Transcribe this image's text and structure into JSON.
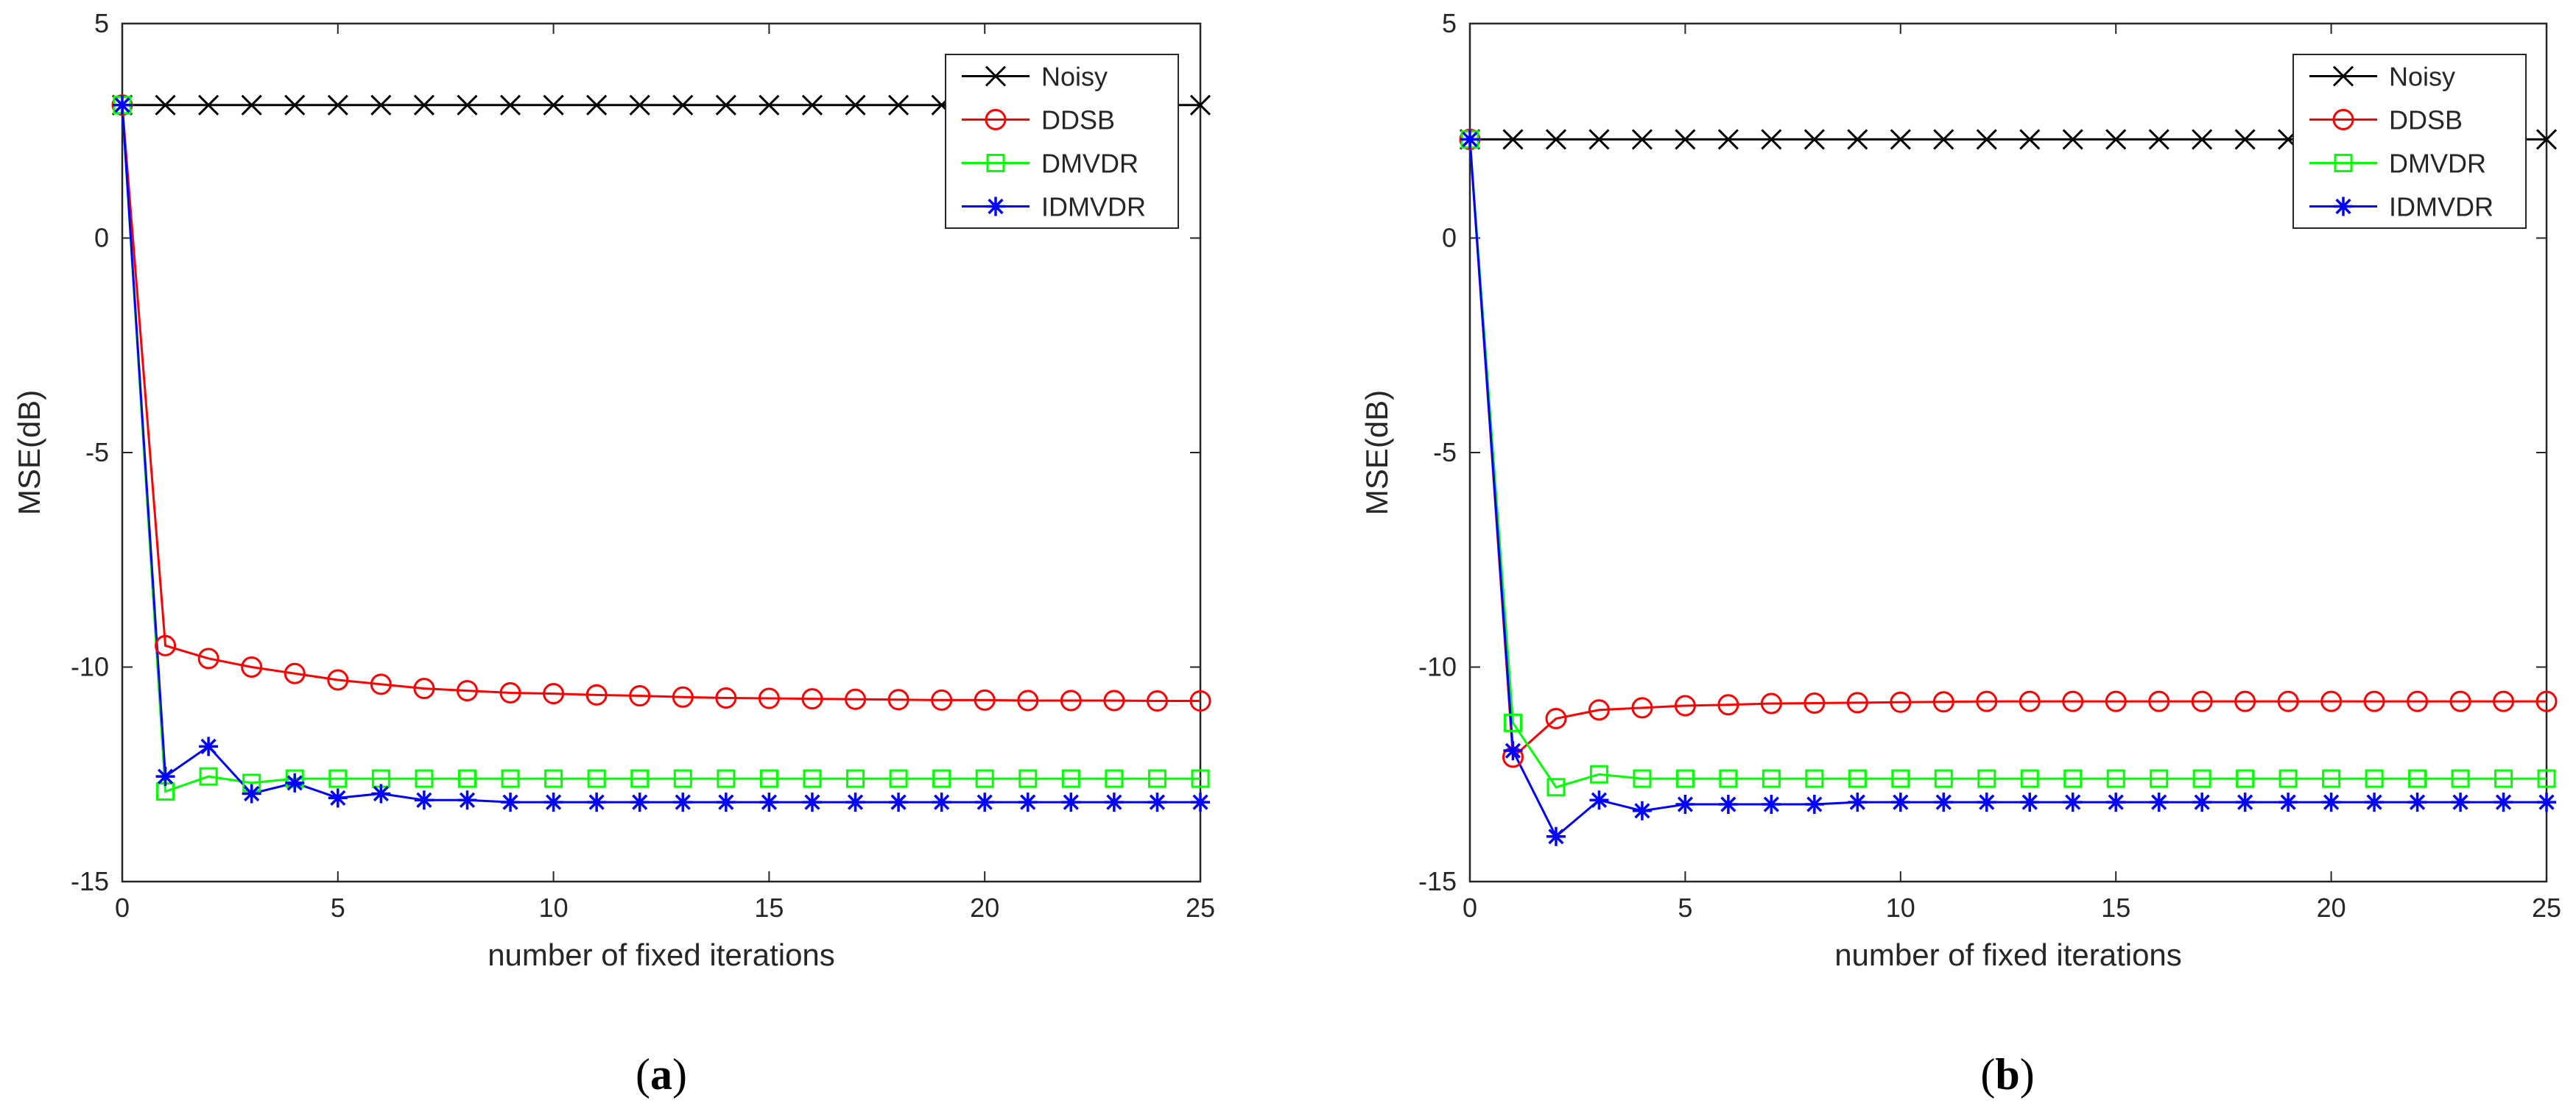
{
  "chart_data": [
    {
      "panel_id": "a",
      "type": "line",
      "caption": "a",
      "xlabel": "number of fixed iterations",
      "ylabel": "MSE(dB)",
      "xlim": [
        0,
        25
      ],
      "ylim": [
        -15,
        5
      ],
      "xticks": [
        0,
        5,
        10,
        15,
        20,
        25
      ],
      "yticks": [
        -15,
        -10,
        -5,
        0,
        5
      ],
      "legend_position": "top-right",
      "x": [
        0,
        1,
        2,
        3,
        4,
        5,
        6,
        7,
        8,
        9,
        10,
        11,
        12,
        13,
        14,
        15,
        16,
        17,
        18,
        19,
        20,
        21,
        22,
        23,
        24,
        25
      ],
      "series": [
        {
          "name": "Noisy",
          "color": "#000000",
          "marker": "x",
          "values": [
            3.1,
            3.1,
            3.1,
            3.1,
            3.1,
            3.1,
            3.1,
            3.1,
            3.1,
            3.1,
            3.1,
            3.1,
            3.1,
            3.1,
            3.1,
            3.1,
            3.1,
            3.1,
            3.1,
            3.1,
            3.1,
            3.1,
            3.1,
            3.1,
            3.1,
            3.1
          ]
        },
        {
          "name": "DDSB",
          "color": "#ff0000",
          "marker": "o",
          "values": [
            3.1,
            -9.5,
            -9.8,
            -10.0,
            -10.15,
            -10.3,
            -10.4,
            -10.5,
            -10.55,
            -10.6,
            -10.62,
            -10.65,
            -10.67,
            -10.7,
            -10.72,
            -10.73,
            -10.74,
            -10.75,
            -10.76,
            -10.77,
            -10.77,
            -10.78,
            -10.78,
            -10.78,
            -10.79,
            -10.79
          ]
        },
        {
          "name": "DMVDR",
          "color": "#00ff00",
          "marker": "s",
          "values": [
            3.1,
            -12.9,
            -12.55,
            -12.7,
            -12.6,
            -12.6,
            -12.6,
            -12.6,
            -12.6,
            -12.6,
            -12.6,
            -12.6,
            -12.6,
            -12.6,
            -12.6,
            -12.6,
            -12.6,
            -12.6,
            -12.6,
            -12.6,
            -12.6,
            -12.6,
            -12.6,
            -12.6,
            -12.6,
            -12.6
          ]
        },
        {
          "name": "IDMVDR",
          "color": "#0000ff",
          "marker": "*",
          "values": [
            3.1,
            -12.55,
            -11.85,
            -12.95,
            -12.7,
            -13.05,
            -12.95,
            -13.1,
            -13.1,
            -13.15,
            -13.15,
            -13.15,
            -13.15,
            -13.15,
            -13.15,
            -13.15,
            -13.15,
            -13.15,
            -13.15,
            -13.15,
            -13.15,
            -13.15,
            -13.15,
            -13.15,
            -13.15,
            -13.15
          ]
        }
      ]
    },
    {
      "panel_id": "b",
      "type": "line",
      "caption": "b",
      "xlabel": "number of fixed iterations",
      "ylabel": "MSE(dB)",
      "xlim": [
        0,
        25
      ],
      "ylim": [
        -15,
        5
      ],
      "xticks": [
        0,
        5,
        10,
        15,
        20,
        25
      ],
      "yticks": [
        -15,
        -10,
        -5,
        0,
        5
      ],
      "legend_position": "top-right",
      "x": [
        0,
        1,
        2,
        3,
        4,
        5,
        6,
        7,
        8,
        9,
        10,
        11,
        12,
        13,
        14,
        15,
        16,
        17,
        18,
        19,
        20,
        21,
        22,
        23,
        24,
        25
      ],
      "series": [
        {
          "name": "Noisy",
          "color": "#000000",
          "marker": "x",
          "values": [
            2.3,
            2.3,
            2.3,
            2.3,
            2.3,
            2.3,
            2.3,
            2.3,
            2.3,
            2.3,
            2.3,
            2.3,
            2.3,
            2.3,
            2.3,
            2.3,
            2.3,
            2.3,
            2.3,
            2.3,
            2.3,
            2.3,
            2.3,
            2.3,
            2.3,
            2.3
          ]
        },
        {
          "name": "DDSB",
          "color": "#ff0000",
          "marker": "o",
          "values": [
            2.3,
            -12.1,
            -11.2,
            -11.0,
            -10.95,
            -10.9,
            -10.88,
            -10.85,
            -10.84,
            -10.83,
            -10.82,
            -10.81,
            -10.8,
            -10.8,
            -10.8,
            -10.8,
            -10.8,
            -10.8,
            -10.8,
            -10.8,
            -10.8,
            -10.8,
            -10.8,
            -10.8,
            -10.8,
            -10.8
          ]
        },
        {
          "name": "DMVDR",
          "color": "#00ff00",
          "marker": "s",
          "values": [
            2.3,
            -11.3,
            -12.8,
            -12.5,
            -12.6,
            -12.6,
            -12.6,
            -12.6,
            -12.6,
            -12.6,
            -12.6,
            -12.6,
            -12.6,
            -12.6,
            -12.6,
            -12.6,
            -12.6,
            -12.6,
            -12.6,
            -12.6,
            -12.6,
            -12.6,
            -12.6,
            -12.6,
            -12.6,
            -12.6
          ]
        },
        {
          "name": "IDMVDR",
          "color": "#0000ff",
          "marker": "*",
          "values": [
            2.3,
            -11.95,
            -13.95,
            -13.1,
            -13.35,
            -13.2,
            -13.2,
            -13.2,
            -13.2,
            -13.15,
            -13.15,
            -13.15,
            -13.15,
            -13.15,
            -13.15,
            -13.15,
            -13.15,
            -13.15,
            -13.15,
            -13.15,
            -13.15,
            -13.15,
            -13.15,
            -13.15,
            -13.15,
            -13.15
          ]
        }
      ]
    }
  ]
}
